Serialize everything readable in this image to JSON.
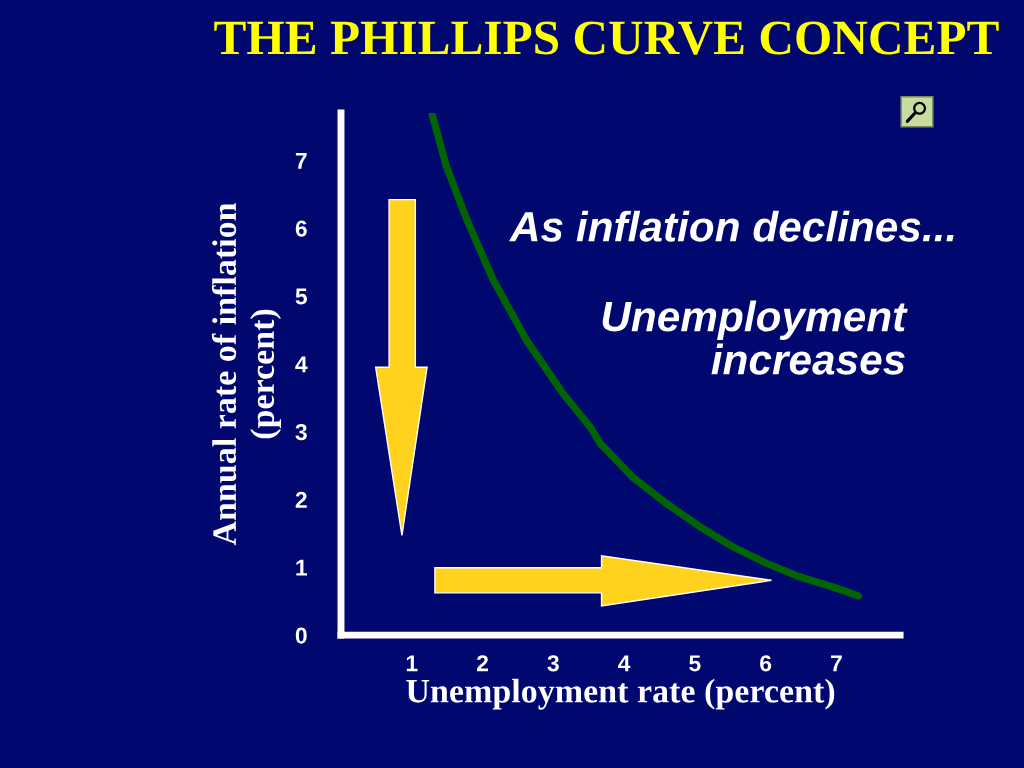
{
  "chart_data": {
    "type": "line",
    "title": "THE PHILLIPS CURVE CONCEPT",
    "xlabel": "Unemployment rate (percent)",
    "ylabel": "Annual rate of inflation\n(percent)",
    "annotations": [
      "As inflation declines...",
      "Unemployment\nincreases"
    ],
    "series": [
      {
        "color": "#006400",
        "x": [
          1.29,
          1.49,
          1.78,
          2.15,
          2.62,
          3.14,
          3.52,
          3.66,
          4.12,
          4.6,
          5.07,
          5.54,
          6.01,
          6.48,
          6.95,
          7.31
        ],
        "values": [
          7.67,
          6.91,
          6.12,
          5.24,
          4.35,
          3.56,
          3.07,
          2.83,
          2.33,
          1.94,
          1.6,
          1.3,
          1.06,
          0.86,
          0.71,
          0.58
        ]
      }
    ],
    "xlim": [
      0,
      7.9
    ],
    "ylim": [
      0,
      7.7
    ],
    "xticks": [
      1,
      2,
      3,
      4,
      5,
      6,
      7
    ],
    "yticks": [
      0,
      1,
      2,
      3,
      4,
      5,
      6,
      7
    ],
    "grid": false,
    "marker": "none",
    "line_style": "solid"
  }
}
